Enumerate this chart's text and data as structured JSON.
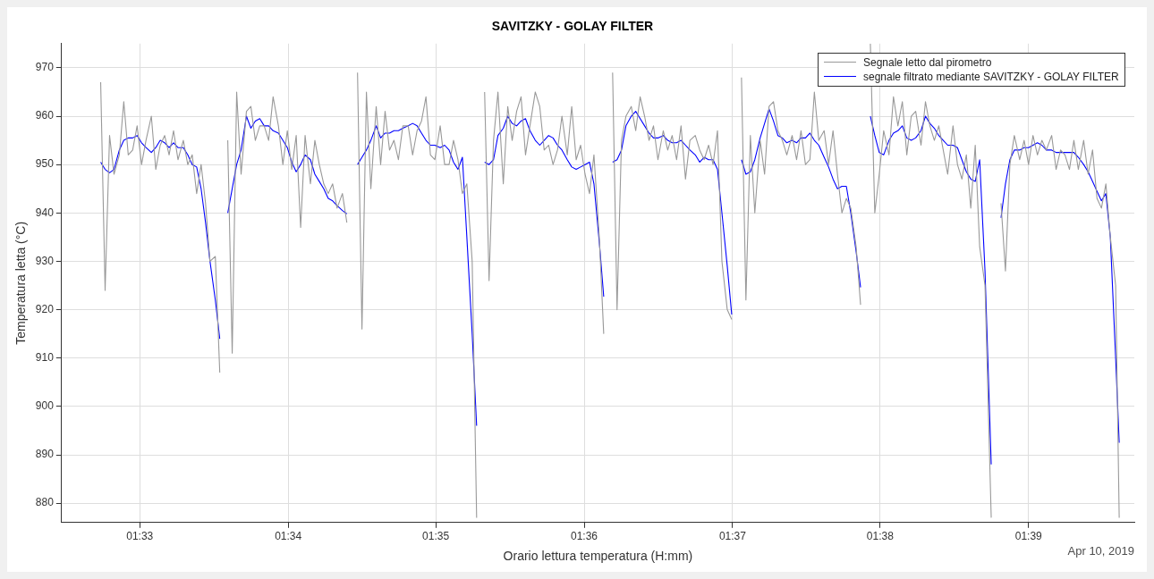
{
  "chart_data": {
    "type": "line",
    "title": "SAVITZKY - GOLAY FILTER",
    "xlabel": "Orario lettura temperatura (H:mm)",
    "ylabel": "Temperatura letta (°C)",
    "annotations": [
      "Apr 10, 2019"
    ],
    "x": [
      1.5456,
      1.5461,
      1.5466,
      1.5471,
      1.5477,
      1.5482,
      1.5487,
      1.5492,
      1.5497,
      1.5502,
      1.5507,
      1.5513,
      1.5518,
      1.5523,
      1.5528,
      1.5533,
      1.5538,
      1.5543,
      1.5549,
      1.5554,
      1.5559,
      1.5564,
      1.5569,
      1.5574,
      1.5579,
      1.5585,
      1.559,
      1.5595,
      1.5599,
      1.5604,
      1.5609,
      1.5614,
      1.562,
      1.5625,
      1.563,
      1.5635,
      1.564,
      1.5645,
      1.565,
      1.5656,
      1.5661,
      1.5666,
      1.5671,
      1.5676,
      1.5681,
      1.5686,
      1.5692,
      1.5697,
      1.5702,
      1.5707,
      1.5712,
      1.5717,
      1.5722,
      1.5728,
      1.5733,
      1.5739,
      1.5745,
      1.575,
      1.5755,
      1.576,
      1.5766,
      1.5771,
      1.5776,
      1.5781,
      1.5786,
      1.5791,
      1.5796,
      1.5802,
      1.5807,
      1.5812,
      1.5817,
      1.5822,
      1.5827,
      1.5832,
      1.5838,
      1.5843,
      1.5848,
      1.5853,
      1.5858,
      1.5863,
      1.5868,
      1.5874,
      1.5879,
      1.5884,
      1.5888,
      1.5893,
      1.5898,
      1.5903,
      1.5909,
      1.5914,
      1.5919,
      1.5924,
      1.5929,
      1.5934,
      1.5939,
      1.5945,
      1.595,
      1.5955,
      1.596,
      1.5965,
      1.597,
      1.5975,
      1.5981,
      1.5986,
      1.5991,
      1.5996,
      1.6001,
      1.6006,
      1.6011,
      1.6017,
      1.6022,
      1.6027,
      1.6032,
      1.6037,
      1.6042,
      1.6047,
      1.6053,
      1.6058,
      1.6063,
      1.6068,
      1.6073,
      1.6078,
      1.6083,
      1.6089,
      1.6094,
      1.6099,
      1.6104,
      1.6109,
      1.6114,
      1.6119,
      1.6125,
      1.613,
      1.6135,
      1.614,
      1.6145,
      1.615,
      1.6155,
      1.6161,
      1.6166,
      1.6172,
      1.6177,
      1.6182,
      1.6187,
      1.6192,
      1.6198,
      1.6203,
      1.6208,
      1.6213,
      1.6218,
      1.6223,
      1.6228,
      1.6234,
      1.6239,
      1.6244,
      1.6249,
      1.6254,
      1.6259,
      1.6264,
      1.627,
      1.6275,
      1.628,
      1.6285,
      1.629,
      1.6295,
      1.63,
      1.6306,
      1.6311,
      1.6316,
      1.6322,
      1.6327,
      1.6332,
      1.6337,
      1.6343,
      1.6348,
      1.6353,
      1.6358,
      1.6363,
      1.6368,
      1.6373,
      1.6379,
      1.6384,
      1.6389,
      1.6394,
      1.6399,
      1.6404,
      1.6409,
      1.6415,
      1.642,
      1.6425,
      1.643,
      1.6435,
      1.644,
      1.6445,
      1.6451,
      1.6458,
      1.6463,
      1.6469,
      1.6474,
      1.6479,
      1.6484,
      1.649,
      1.6495,
      1.65,
      1.6505,
      1.651,
      1.6515,
      1.652,
      1.6526,
      1.6531,
      1.6536,
      1.6541,
      1.6546,
      1.6551,
      1.6556,
      1.6562,
      1.6567,
      1.6572,
      1.6577,
      1.6582,
      1.6587,
      1.6592,
      1.6598,
      1.6602
    ],
    "series": [
      {
        "name": "Segnale letto dal pirometro",
        "color": "#999999",
        "values": [
          967,
          924,
          956,
          948,
          952,
          963,
          952,
          953,
          958,
          950,
          955,
          960,
          949,
          954,
          956,
          952,
          957,
          951,
          955,
          950,
          952,
          944,
          950,
          942,
          930,
          931,
          907,
          null,
          955,
          911,
          965,
          948,
          961,
          962,
          955,
          958,
          958,
          955,
          964,
          958,
          950,
          957,
          949,
          956,
          937,
          956,
          946,
          955,
          950,
          946,
          944,
          946,
          941,
          944,
          938,
          null,
          969,
          916,
          965,
          945,
          962,
          950,
          961,
          953,
          955,
          951,
          958,
          958,
          952,
          957,
          959,
          964,
          952,
          951,
          958,
          950,
          950,
          955,
          951,
          944,
          946,
          930,
          877,
          null,
          965,
          926,
          955,
          965,
          946,
          962,
          955,
          961,
          964,
          952,
          958,
          965,
          962,
          953,
          954,
          950,
          953,
          960,
          952,
          962,
          951,
          954,
          948,
          944,
          952,
          935,
          915,
          null,
          969,
          920,
          955,
          960,
          962,
          957,
          964,
          960,
          955,
          958,
          951,
          957,
          953,
          956,
          951,
          958,
          947,
          955,
          956,
          953,
          951,
          954,
          950,
          957,
          930,
          920,
          918,
          null,
          968,
          922,
          956,
          940,
          955,
          948,
          962,
          963,
          957,
          955,
          952,
          956,
          951,
          957,
          950,
          951,
          965,
          955,
          957,
          950,
          957,
          948,
          940,
          943,
          941,
          933,
          921,
          null,
          975,
          940,
          948,
          957,
          952,
          964,
          958,
          963,
          952,
          960,
          961,
          954,
          963,
          958,
          955,
          958,
          953,
          948,
          958,
          950,
          947,
          952,
          941,
          954,
          933,
          925,
          877,
          null,
          942,
          928,
          950,
          956,
          951,
          955,
          950,
          956,
          952,
          955,
          953,
          956,
          949,
          953,
          952,
          949,
          955,
          949,
          955,
          948,
          953,
          943,
          941,
          946,
          935,
          925,
          877
        ]
      },
      {
        "name": "segnale filtrato mediante SAVITZKY - GOLAY FILTER",
        "color": "#0000ff",
        "values": [
          950.5,
          949,
          948.3,
          949,
          953,
          955,
          955.5,
          955.5,
          956,
          954.5,
          953.5,
          952.5,
          953.5,
          955,
          954.5,
          953.5,
          954.5,
          953.5,
          953.5,
          952,
          950,
          949.5,
          945,
          938,
          930,
          922,
          914,
          null,
          940,
          945,
          950,
          953,
          960,
          957.5,
          959,
          959.5,
          958,
          958,
          957,
          956.5,
          955,
          953.5,
          950.5,
          948.5,
          950,
          952,
          951,
          948,
          946.5,
          945,
          943,
          942.5,
          941.5,
          940.5,
          939.8,
          null,
          950,
          951.5,
          953,
          955,
          958,
          955.5,
          956.5,
          956.5,
          957,
          957,
          957.5,
          958,
          958.5,
          958,
          956.5,
          955,
          954,
          954,
          953.5,
          954,
          953,
          950.5,
          949,
          951.5,
          935,
          915,
          896,
          null,
          950.5,
          950,
          951,
          956,
          957.5,
          960,
          958.5,
          958,
          959,
          959.5,
          957,
          955,
          954,
          955,
          956,
          955.5,
          954,
          953,
          951,
          949.5,
          949,
          949.5,
          950,
          950.5,
          946,
          934,
          922.7,
          null,
          950.5,
          951,
          953,
          958,
          960,
          961,
          959.5,
          958,
          956.5,
          955.5,
          955.5,
          956,
          955,
          954.5,
          954.5,
          955,
          954,
          953,
          952,
          950.5,
          951.5,
          951,
          951,
          949,
          940,
          929,
          919,
          null,
          951,
          948,
          948.5,
          951,
          955.5,
          958.5,
          961.5,
          959,
          956,
          955.5,
          954.5,
          955,
          954.5,
          955.5,
          955.5,
          956.5,
          955,
          954,
          951.5,
          949.5,
          947,
          945,
          945.5,
          945.5,
          940,
          932,
          924.6,
          null,
          960,
          956,
          952.5,
          952,
          955,
          956.5,
          957,
          958,
          955.5,
          955,
          955.5,
          957,
          960,
          958.5,
          957.5,
          956,
          955,
          954,
          954,
          953.5,
          951,
          948.5,
          947,
          946.5,
          951,
          928,
          888,
          null,
          939,
          946,
          951,
          953,
          953,
          953.5,
          953.5,
          954,
          954.5,
          954,
          953,
          953,
          952.5,
          952.5,
          952.5,
          952.5,
          952.5,
          951.5,
          950,
          948.5,
          946.5,
          944.5,
          942.5,
          944,
          935,
          910,
          892.5
        ]
      }
    ],
    "xlim": [
      1.5412,
      1.6619
    ],
    "xticks": [
      {
        "value": 1.55,
        "label": "01:33"
      },
      {
        "value": 1.5667,
        "label": "01:34"
      },
      {
        "value": 1.5833,
        "label": "01:35"
      },
      {
        "value": 1.6,
        "label": "01:36"
      },
      {
        "value": 1.6167,
        "label": "01:37"
      },
      {
        "value": 1.6333,
        "label": "01:38"
      },
      {
        "value": 1.65,
        "label": "01:39"
      }
    ],
    "ylim": [
      876,
      975
    ],
    "yticks": [
      880,
      890,
      900,
      910,
      920,
      930,
      940,
      950,
      960,
      970
    ],
    "grid": true,
    "legend": "top right",
    "marker": "none",
    "line_style": "solid"
  }
}
